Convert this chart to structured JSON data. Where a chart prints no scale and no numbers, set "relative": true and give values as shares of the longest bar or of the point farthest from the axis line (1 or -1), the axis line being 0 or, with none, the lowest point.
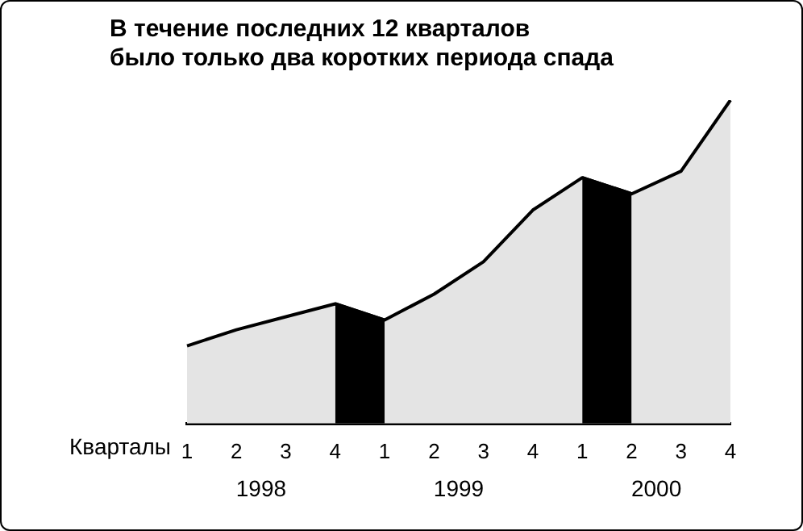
{
  "chart_data": {
    "type": "area",
    "title": "В течение последних 12 кварталов\nбыло только два коротких периода спада",
    "xlabel": "Кварталы",
    "relative": true,
    "categories": [
      "1",
      "2",
      "3",
      "4",
      "1",
      "2",
      "3",
      "4",
      "1",
      "2",
      "3",
      "4"
    ],
    "series": [
      {
        "color": "#e4e4e4",
        "values": [
          0.24,
          0.29,
          0.33,
          0.37,
          0.32,
          0.4,
          0.5,
          0.66,
          0.76,
          0.71,
          0.78,
          1
        ]
      },
      {
        "color": "#000000",
        "values": [
          null,
          null,
          null,
          0.37,
          0.32,
          null,
          null,
          null,
          0.76,
          0.71,
          null,
          null
        ]
      }
    ],
    "annotations": [
      "1998",
      "1999",
      "2000"
    ],
    "grid": false,
    "legend": false
  }
}
